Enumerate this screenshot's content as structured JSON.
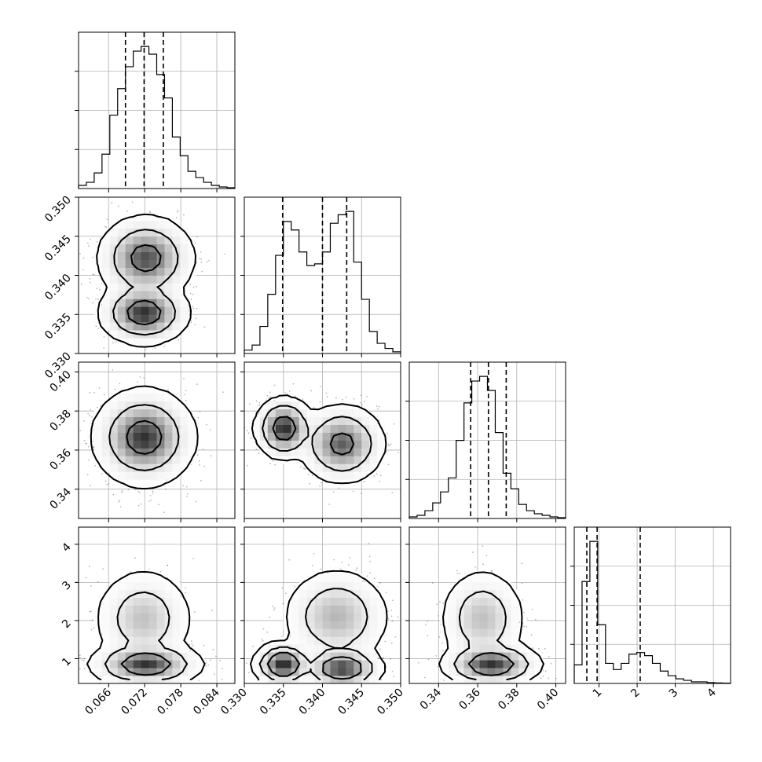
{
  "chart_data": {
    "type": "corner",
    "parameters": [
      {
        "name": "",
        "range": [
          0.061,
          0.087
        ],
        "ticks": [
          0.066,
          0.072,
          0.078,
          0.084
        ],
        "tick_labels": [
          "0.066",
          "0.072",
          "0.078",
          "0.084"
        ],
        "quantiles": [
          0.0688,
          0.0719,
          0.0751
        ],
        "hist": [
          0.02,
          0.04,
          0.1,
          0.22,
          0.47,
          0.64,
          0.78,
          0.88,
          0.91,
          0.86,
          0.73,
          0.58,
          0.33,
          0.21,
          0.11,
          0.07,
          0.04,
          0.02,
          0.01,
          0.005
        ]
      },
      {
        "name": "",
        "range": [
          0.33,
          0.35
        ],
        "ticks": [
          0.33,
          0.335,
          0.34,
          0.345,
          0.35
        ],
        "tick_labels": [
          "0.330",
          "0.335",
          "0.340",
          "0.345",
          "0.350"
        ],
        "quantiles": [
          0.3349,
          0.34,
          0.3431
        ],
        "hist": [
          0.02,
          0.05,
          0.16,
          0.35,
          0.58,
          0.78,
          0.73,
          0.6,
          0.52,
          0.53,
          0.6,
          0.77,
          0.82,
          0.84,
          0.54,
          0.32,
          0.13,
          0.06,
          0.03,
          0.01
        ]
      },
      {
        "name": "",
        "range": [
          0.325,
          0.405
        ],
        "ticks": [
          0.34,
          0.36,
          0.38,
          0.4
        ],
        "tick_labels": [
          "0.34",
          "0.36",
          "0.38",
          "0.40"
        ],
        "quantiles": [
          0.3564,
          0.3655,
          0.3746
        ],
        "hist": [
          0.01,
          0.02,
          0.05,
          0.1,
          0.17,
          0.26,
          0.5,
          0.74,
          0.88,
          0.91,
          0.82,
          0.55,
          0.29,
          0.19,
          0.09,
          0.05,
          0.03,
          0.02,
          0.01,
          0.005
        ]
      },
      {
        "name": "",
        "range": [
          0.35,
          4.45
        ],
        "ticks": [
          1,
          2,
          3,
          4
        ],
        "tick_labels": [
          "1",
          "2",
          "3",
          "4"
        ],
        "quantiles": [
          0.68,
          0.95,
          2.08
        ],
        "hist": [
          0.12,
          0.66,
          0.92,
          0.38,
          0.13,
          0.09,
          0.13,
          0.19,
          0.2,
          0.18,
          0.13,
          0.08,
          0.05,
          0.03,
          0.02,
          0.01,
          0.01,
          0.005,
          0.003,
          0.002
        ]
      }
    ],
    "pairs": [
      {
        "x": 0,
        "y": 1,
        "modes": [
          {
            "mx": 0.0722,
            "my": 0.3422,
            "sx": 0.0028,
            "sy": 0.0019,
            "w": 0.55
          },
          {
            "mx": 0.0719,
            "my": 0.3352,
            "sx": 0.0026,
            "sy": 0.0014,
            "w": 0.45
          }
        ]
      },
      {
        "x": 0,
        "y": 2,
        "modes": [
          {
            "mx": 0.0719,
            "my": 0.3665,
            "sx": 0.0029,
            "sy": 0.0085,
            "w": 1.0
          }
        ]
      },
      {
        "x": 1,
        "y": 2,
        "modes": [
          {
            "mx": 0.3351,
            "my": 0.3712,
            "sx": 0.0013,
            "sy": 0.0055,
            "w": 0.42
          },
          {
            "mx": 0.3425,
            "my": 0.3632,
            "sx": 0.0019,
            "sy": 0.007,
            "w": 0.58
          }
        ]
      },
      {
        "x": 0,
        "y": 3,
        "modes": [
          {
            "mx": 0.0722,
            "my": 0.85,
            "sx": 0.0031,
            "sy": 0.2,
            "w": 0.62
          },
          {
            "mx": 0.0718,
            "my": 2.05,
            "sx": 0.0028,
            "sy": 0.45,
            "w": 0.38
          }
        ]
      },
      {
        "x": 1,
        "y": 3,
        "modes": [
          {
            "mx": 0.335,
            "my": 0.85,
            "sx": 0.0013,
            "sy": 0.2,
            "w": 0.28
          },
          {
            "mx": 0.3425,
            "my": 0.75,
            "sx": 0.0018,
            "sy": 0.2,
            "w": 0.34
          },
          {
            "mx": 0.3418,
            "my": 2.1,
            "sx": 0.0024,
            "sy": 0.45,
            "w": 0.38
          }
        ]
      },
      {
        "x": 2,
        "y": 3,
        "modes": [
          {
            "mx": 0.367,
            "my": 0.85,
            "sx": 0.0085,
            "sy": 0.2,
            "w": 0.62
          },
          {
            "mx": 0.3625,
            "my": 2.05,
            "sx": 0.0075,
            "sy": 0.45,
            "w": 0.38
          }
        ]
      }
    ],
    "grid": true,
    "contour_levels": [
      0.39,
      0.86,
      0.99
    ]
  }
}
